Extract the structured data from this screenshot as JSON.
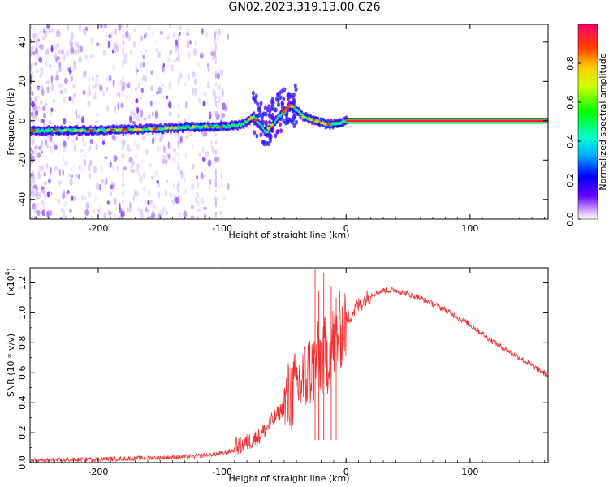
{
  "title": "GN02.2023.319.13.00.C26",
  "colors": {
    "snr_line": "#f03030",
    "frame": "#000000"
  },
  "chart_data": [
    {
      "type": "heatmap",
      "title": "GN02.2023.319.13.00.C26",
      "xlabel": "Height of straight line (km)",
      "ylabel": "Frequency (Hz)",
      "xlim": [
        -255,
        163
      ],
      "ylim": [
        -50,
        49
      ],
      "xticks": [
        -200,
        -100,
        0,
        100
      ],
      "yticks": [
        -40,
        -20,
        0,
        20,
        40
      ],
      "xtick_labels": [
        "-200",
        "-100",
        "0",
        "100"
      ],
      "ytick_labels": [
        "-40",
        "-20",
        "0",
        "20",
        "40"
      ],
      "trace_description": "Ridge near -4 Hz at -250 km rising to ~0 Hz at -90 km, scattered spike to +15 Hz near -50 km, constant 0 Hz line from 0 km to 163 km",
      "trace": {
        "x": [
          -250,
          -200,
          -150,
          -120,
          -100,
          -85,
          -75,
          -65,
          -55,
          -45,
          -35,
          -25,
          -15,
          -5,
          0,
          160
        ],
        "y": [
          -5,
          -5,
          -4,
          -3,
          -3,
          -2,
          2,
          -6,
          2,
          8,
          2,
          0,
          -2,
          -1,
          0,
          0
        ]
      }
    },
    {
      "type": "colorbar",
      "label": "Normalized spectral amplitude",
      "range": [
        0.0,
        1.0
      ],
      "ticks": [
        0.0,
        0.2,
        0.4,
        0.6,
        0.8
      ],
      "tick_labels": [
        "0.0",
        "0.2",
        "0.4",
        "0.6",
        "0.8"
      ]
    },
    {
      "type": "line",
      "xlabel": "Height of straight line (km)",
      "ylabel": "SNR (10 * v/v)",
      "scale_label": "(x10",
      "scale_exp": "4",
      "scale_close": ")",
      "xlim": [
        -255,
        163
      ],
      "ylim": [
        0.0,
        1.3
      ],
      "xticks": [
        -200,
        -100,
        0,
        100
      ],
      "yticks": [
        0.0,
        0.2,
        0.4,
        0.6,
        0.8,
        1.0,
        1.2
      ],
      "xtick_labels": [
        "-200",
        "-100",
        "0",
        "100"
      ],
      "ytick_labels": [
        "0.0",
        "0.2",
        "0.4",
        "0.6",
        "0.8",
        "1.0",
        "1.2"
      ],
      "series": [
        {
          "name": "SNR",
          "x": [
            -255,
            -200,
            -150,
            -120,
            -100,
            -85,
            -70,
            -60,
            -50,
            -45,
            -40,
            -35,
            -30,
            -25,
            -20,
            -15,
            -10,
            -5,
            0,
            10,
            20,
            30,
            40,
            60,
            80,
            100,
            120,
            140,
            163
          ],
          "y": [
            0.01,
            0.02,
            0.03,
            0.04,
            0.06,
            0.09,
            0.15,
            0.25,
            0.35,
            0.45,
            0.5,
            0.55,
            0.6,
            0.65,
            0.7,
            0.72,
            0.8,
            0.88,
            0.95,
            1.05,
            1.12,
            1.15,
            1.15,
            1.1,
            1.02,
            0.92,
            0.8,
            0.7,
            0.58
          ]
        }
      ],
      "peaks": {
        "x": [
          -25,
          -22,
          -18,
          -12,
          -8
        ],
        "y": [
          1.29,
          1.15,
          1.27,
          1.18,
          1.1
        ]
      }
    }
  ]
}
